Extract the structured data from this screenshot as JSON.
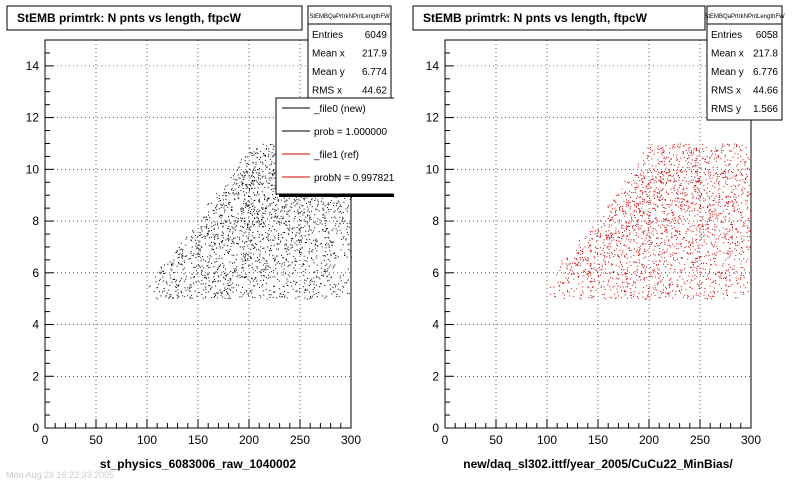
{
  "chart_data": [
    {
      "type": "scatter",
      "title": "StEMB primtrk: N pnts vs length, ftpcW",
      "xlabel": "st_physics_6083006_raw_1040002",
      "ylabel": "",
      "xlim": [
        0,
        300
      ],
      "ylim": [
        0,
        15
      ],
      "x_ticks": [
        0,
        50,
        100,
        150,
        200,
        250,
        300
      ],
      "y_ticks": [
        0,
        2,
        4,
        6,
        8,
        10,
        12,
        14
      ],
      "grid": true,
      "marker_color": "#000000",
      "point_count_shown": 2200,
      "region": {
        "y_min": 5,
        "y_max": 11,
        "x_start_by_y": [
          [
            5,
            105
          ],
          [
            6,
            110
          ],
          [
            7,
            130
          ],
          [
            8,
            155
          ],
          [
            9,
            170
          ],
          [
            10,
            190
          ],
          [
            11,
            205
          ]
        ],
        "x_max": 300
      },
      "stats_box": {
        "title": "StEMBQaPrtrkNPntLengthFW",
        "rows": [
          {
            "label": "Entries",
            "value": "6049"
          },
          {
            "label": "Mean x",
            "value": "217.9"
          },
          {
            "label": "Mean y",
            "value": "6.774"
          },
          {
            "label": "RMS x",
            "value": "44.62"
          }
        ]
      },
      "legend": {
        "entries": [
          {
            "label": "_file0 (new)",
            "color": "#000000"
          },
          {
            "label": "prob = 1.000000",
            "color": "#000000"
          },
          {
            "label": "_file1 (ref)",
            "color": "#cc0000"
          },
          {
            "label": "probN = 0.997821",
            "color": "#cc0000"
          }
        ]
      }
    },
    {
      "type": "scatter",
      "title": "StEMB primtrk: N pnts vs length, ftpcW",
      "xlabel": "new/daq_sl302.ittf/year_2005/CuCu22_MinBias/",
      "ylabel": "",
      "xlim": [
        0,
        300
      ],
      "ylim": [
        0,
        15
      ],
      "x_ticks": [
        0,
        50,
        100,
        150,
        200,
        250,
        300
      ],
      "y_ticks": [
        0,
        2,
        4,
        6,
        8,
        10,
        12,
        14
      ],
      "grid": true,
      "marker_color": "#cc0000",
      "point_count_shown": 2200,
      "region": {
        "y_min": 5,
        "y_max": 11,
        "x_start_by_y": [
          [
            5,
            105
          ],
          [
            6,
            110
          ],
          [
            7,
            130
          ],
          [
            8,
            155
          ],
          [
            9,
            170
          ],
          [
            10,
            190
          ],
          [
            11,
            205
          ]
        ],
        "x_max": 300
      },
      "stats_box": {
        "title": "StEMBQaPrtrkNPntLengthFW",
        "rows": [
          {
            "label": "Entries",
            "value": "6058"
          },
          {
            "label": "Mean x",
            "value": "217.8"
          },
          {
            "label": "Mean y",
            "value": "6.776"
          },
          {
            "label": "RMS x",
            "value": "44.66"
          },
          {
            "label": "RMS y",
            "value": "1.566"
          }
        ]
      }
    }
  ],
  "footer_text": "Mon Aug 29 16:22:33 2005"
}
